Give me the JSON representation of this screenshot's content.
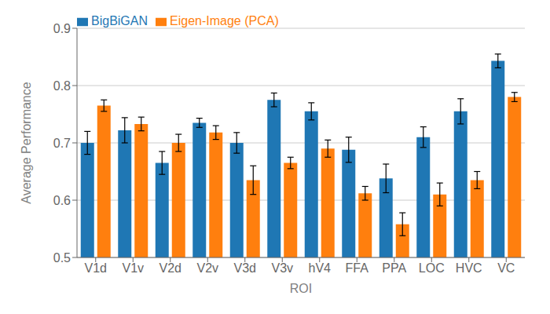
{
  "chart_data": {
    "type": "bar",
    "categories": [
      "V1d",
      "V1v",
      "V2d",
      "V2v",
      "V3d",
      "V3v",
      "hV4",
      "FFA",
      "PPA",
      "LOC",
      "HVC",
      "VC"
    ],
    "series": [
      {
        "name": "BigBiGAN",
        "color": "#1f77b4",
        "values": [
          0.7,
          0.722,
          0.665,
          0.735,
          0.7,
          0.775,
          0.755,
          0.688,
          0.638,
          0.71,
          0.755,
          0.843
        ],
        "errors": [
          0.02,
          0.022,
          0.02,
          0.008,
          0.018,
          0.012,
          0.015,
          0.022,
          0.025,
          0.018,
          0.022,
          0.012
        ]
      },
      {
        "name": "Eigen-Image (PCA)",
        "color": "#ff7f0e",
        "values": [
          0.765,
          0.733,
          0.7,
          0.718,
          0.635,
          0.665,
          0.69,
          0.612,
          0.558,
          0.61,
          0.635,
          0.78
        ],
        "errors": [
          0.01,
          0.012,
          0.015,
          0.012,
          0.025,
          0.01,
          0.015,
          0.012,
          0.02,
          0.02,
          0.015,
          0.008
        ]
      }
    ],
    "xlabel": "ROI",
    "ylabel": "Average Performance",
    "ylim": [
      0.5,
      0.9
    ],
    "yticks": [
      0.5,
      0.6,
      0.7,
      0.8,
      0.9
    ],
    "grid": true,
    "legend": "upper left"
  }
}
